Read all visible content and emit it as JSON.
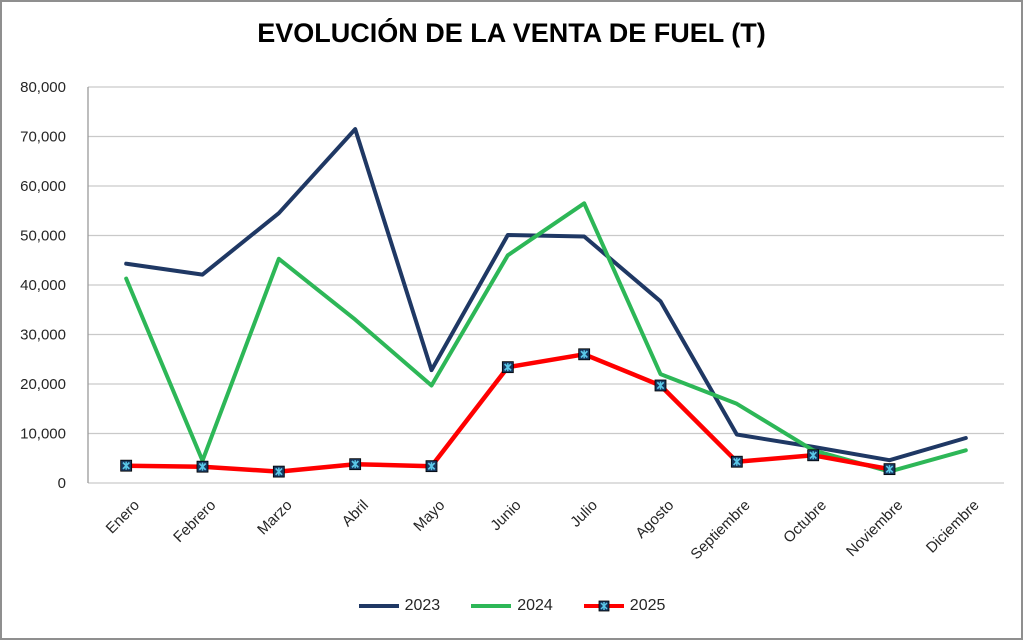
{
  "chart_data": {
    "type": "line",
    "title": "EVOLUCIÓN DE LA VENTA DE FUEL (T)",
    "categories": [
      "Enero",
      "Febrero",
      "Marzo",
      "Abril",
      "Mayo",
      "Junio",
      "Julio",
      "Agosto",
      "Septiembre",
      "Octubre",
      "Noviembre",
      "Diciembre"
    ],
    "series": [
      {
        "name": "2023",
        "color": "#1F3864",
        "marker": "none",
        "values": [
          44300,
          42100,
          54500,
          71500,
          22800,
          50100,
          49800,
          36700,
          9800,
          7300,
          4600,
          9100
        ]
      },
      {
        "name": "2024",
        "color": "#2DB757",
        "marker": "none",
        "values": [
          41300,
          4500,
          45300,
          33000,
          19700,
          46000,
          56500,
          22000,
          16000,
          6600,
          2300,
          6600
        ]
      },
      {
        "name": "2025",
        "color": "#FF0000",
        "marker": "x-square",
        "marker_fill": "#17375E",
        "marker_cross_color": "#5BC8E8",
        "values": [
          3500,
          3300,
          2300,
          3800,
          3400,
          23400,
          26000,
          19700,
          4300,
          5600,
          2800,
          null
        ]
      }
    ],
    "ylim": [
      0,
      80000
    ],
    "ytick_interval": 10000,
    "ytick_labels": [
      "0",
      "10,000",
      "20,000",
      "30,000",
      "40,000",
      "50,000",
      "60,000",
      "70,000",
      "80,000"
    ],
    "grid": true,
    "legend_position": "bottom",
    "gridline_color": "#C9C9C9",
    "axis_color": "#9A9A9A"
  }
}
